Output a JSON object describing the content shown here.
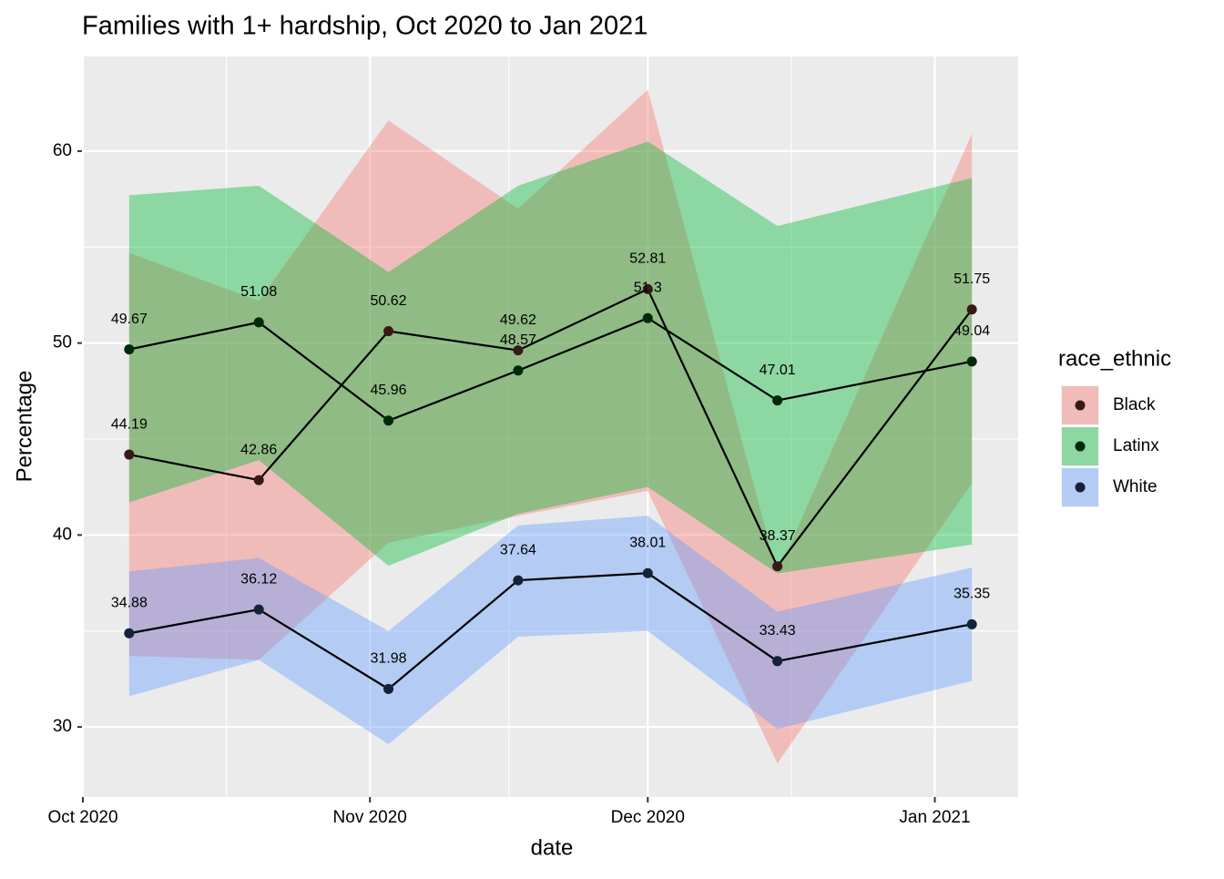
{
  "chart_data": {
    "type": "line",
    "title": "Families with 1+ hardship, Oct 2020 to Jan 2021",
    "x_label": "date",
    "y_label": "Percentage",
    "legend_title": "race_ethnic",
    "x": [
      "2020-10-06",
      "2020-10-20",
      "2020-11-03",
      "2020-11-17",
      "2020-12-01",
      "2020-12-15",
      "2021-01-05"
    ],
    "series": [
      {
        "name": "Black",
        "color": "#F8766D",
        "values": [
          44.19,
          42.86,
          50.62,
          49.62,
          52.81,
          38.37,
          51.75
        ],
        "lower": [
          33.7,
          33.5,
          39.6,
          41.0,
          42.3,
          28.1,
          42.7
        ],
        "upper": [
          54.7,
          52.2,
          61.6,
          57.0,
          63.2,
          38.0,
          60.9
        ]
      },
      {
        "name": "Latinx",
        "color": "#00BA38",
        "values": [
          49.67,
          51.08,
          45.96,
          48.57,
          51.3,
          47.01,
          49.04
        ],
        "lower": [
          41.7,
          43.9,
          38.4,
          41.1,
          42.5,
          38.0,
          39.5
        ],
        "upper": [
          57.7,
          58.2,
          53.7,
          58.2,
          60.5,
          56.1,
          58.6
        ]
      },
      {
        "name": "White",
        "color": "#619CFF",
        "values": [
          34.88,
          36.12,
          31.98,
          37.64,
          38.01,
          33.43,
          35.35
        ],
        "lower": [
          31.6,
          33.5,
          29.1,
          34.7,
          35.0,
          29.9,
          32.4
        ],
        "upper": [
          38.1,
          38.8,
          35.0,
          40.5,
          41.0,
          36.0,
          38.3
        ]
      }
    ],
    "line_color": "#000000",
    "ribbon_opacity": 0.4,
    "xlim": [
      "2020-10-01",
      "2021-01-10"
    ],
    "xticks": [
      {
        "value": "2020-10-01",
        "label": "Oct 2020"
      },
      {
        "value": "2020-11-01",
        "label": "Nov 2020"
      },
      {
        "value": "2020-12-01",
        "label": "Dec 2020"
      },
      {
        "value": "2021-01-01",
        "label": "Jan 2021"
      }
    ],
    "ylim": [
      26.35,
      64.93
    ],
    "yticks": [
      30,
      40,
      50,
      60
    ],
    "grid": true,
    "legend_position": "right"
  }
}
